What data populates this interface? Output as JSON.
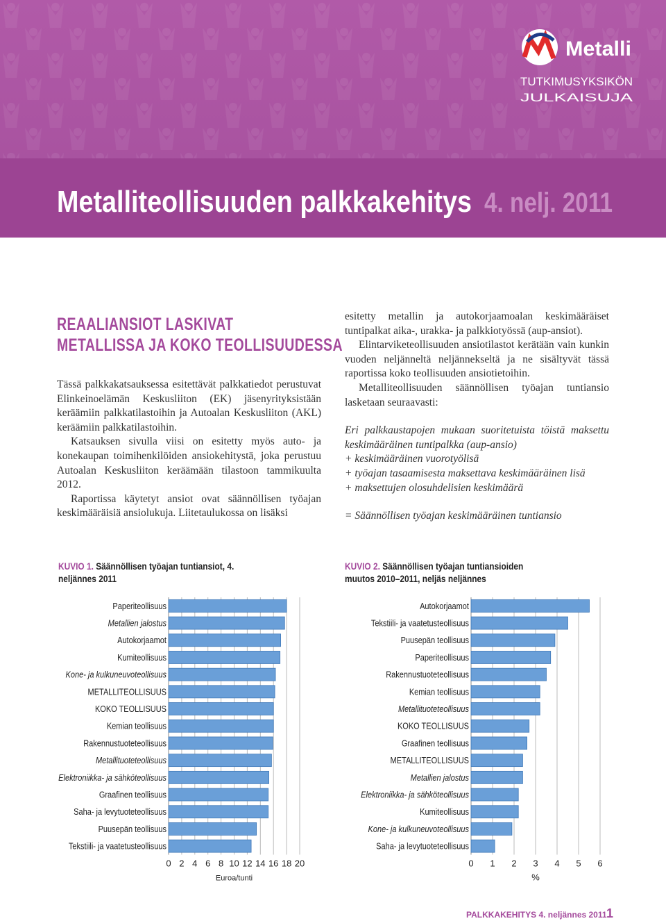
{
  "header": {
    "logo": "Metalli",
    "series": [
      "TUTKIMUSYKSIKÖN",
      "JULKAISUJA"
    ],
    "title": "Metalliteollisuuden palkkakehitys",
    "issue": "4. nelj. 2011"
  },
  "article": {
    "heading": [
      "REAALIANSIOT LASKIVAT",
      "METALLISSA JA KOKO TEOLLISUUDESSA"
    ],
    "left_paragraphs": [
      "Tässä palkkakatsauksessa esitettävät palkkatiedot perustuvat Elinkeinoelämän Keskusliiton (EK) jäsenyrityksistään keräämiin palkkatilastoihin ja Autoalan Keskusliiton (AKL) keräämiin palkkatilastoihin.",
      "Katsauksen sivulla viisi on esitetty myös auto- ja konekaupan toimihenkilöiden ansiokehitystä, joka perustuu Autoalan Keskusliiton keräämään tilastoon tammikuulta 2012.",
      "Raportissa käytetyt ansiot ovat säännöllisen työajan keskimääräisiä ansiolukuja. Liitetaulukossa on lisäksi"
    ],
    "right_paragraphs": [
      "esitetty metallin ja autokorjaamoalan keskimääräiset tuntipalkat aika-, urakka- ja palkkiotyössä (aup-ansiot).",
      "Elintarviketeollisuuden ansiotilastot kerätään vain kunkin vuoden neljänneltä neljännekseltä ja ne sisältyvät tässä raportissa koko teollisuuden ansiotietoihin.",
      "Metalliteollisuuden säännöllisen työajan tuntiansio lasketaan seuraavasti:"
    ],
    "formula": [
      "Eri palkkaustapojen mukaan suoritetuista töistä maksettu keskimääräinen tuntipalkka (aup-ansio)",
      "+ keskimääräinen vuorotyölisä",
      "+ työajan tasaamisesta maksettava keskimääräinen lisä",
      "+ maksettujen olosuhdelisien keskimäärä"
    ],
    "result": "= Säännöllisen työajan keskimääräinen tuntiansio"
  },
  "chart_data": [
    {
      "type": "bar",
      "orientation": "horizontal",
      "figure_label": "KUVIO 1.",
      "title": "Säännöllisen työajan tuntiansiot, 4. neljännes 2011",
      "categories": [
        "Paperiteollisuus",
        "Metallien jalostus",
        "Autokorjaamot",
        "Kumiteollisuus",
        "Kone- ja kulkuneuvoteollisuus",
        "METALLITEOLLISUUS",
        "KOKO TEOLLISUUS",
        "Kemian teollisuus",
        "Rakennustuoteteollisuus",
        "Metallituoteteollisuus",
        "Elektroniikka- ja sähköteollisuus",
        "Graafinen teollisuus",
        "Saha- ja levytuoteteollisuus",
        "Puusepän teollisuus",
        "Tekstiili- ja vaatetusteollisuus"
      ],
      "values": [
        18.0,
        17.7,
        17.1,
        17.0,
        16.3,
        16.2,
        16.0,
        16.0,
        15.9,
        15.7,
        15.3,
        15.2,
        15.2,
        13.4,
        12.6
      ],
      "xlim": [
        0,
        20
      ],
      "xticks": [
        0,
        2,
        4,
        6,
        8,
        10,
        12,
        14,
        16,
        18,
        20
      ],
      "xlabel": "Euroa/tunti",
      "color": "#6a9fd8",
      "grid": true
    },
    {
      "type": "bar",
      "orientation": "horizontal",
      "figure_label": "KUVIO 2.",
      "title": "Säännöllisen työajan tuntiansioiden muutos 2010–2011, neljäs neljännes",
      "categories": [
        "Autokorjaamot",
        "Tekstiili- ja vaatetusteollisuus",
        "Puusepän teollisuus",
        "Paperiteollisuus",
        "Rakennustuoteteollisuus",
        "Kemian teollisuus",
        "Metallituoteteollisuus",
        "KOKO TEOLLISUUS",
        "Graafinen teollisuus",
        "METALLITEOLLISUUS",
        "Metallien jalostus",
        "Elektroniikka- ja sähköteollisuus",
        "Kumiteollisuus",
        "Kone- ja kulkuneuvoteollisuus",
        "Saha- ja levytuoteteollisuus"
      ],
      "values": [
        5.5,
        4.5,
        3.9,
        3.7,
        3.5,
        3.2,
        3.2,
        2.7,
        2.6,
        2.4,
        2.4,
        2.2,
        2.2,
        1.9,
        1.1
      ],
      "xlim": [
        0,
        6
      ],
      "xticks": [
        0,
        1,
        2,
        3,
        4,
        5,
        6
      ],
      "xlabel": "%",
      "color": "#6a9fd8",
      "grid": true
    }
  ],
  "footer": {
    "section": "PALKKAKEHITYS",
    "issue": "4. neljännes 2011",
    "page": "1"
  }
}
